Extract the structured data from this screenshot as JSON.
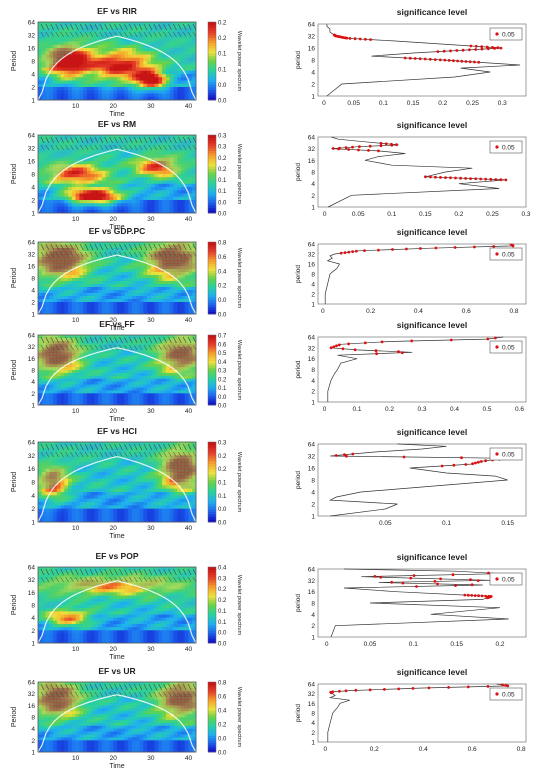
{
  "colors": {
    "ridge": "#dd1111",
    "line": "#333333",
    "panel_border": "#777777",
    "colorbar": [
      "#1010c8",
      "#1c64f0",
      "#1fb0f0",
      "#28d2a0",
      "#66d24a",
      "#f0e13c",
      "#f5a02a",
      "#e8402a",
      "#c81414"
    ]
  },
  "icons": {
    "arrow": "phase-arrow-glyph",
    "dot": "legend-dot-icon"
  },
  "chart_data": [
    {
      "type": "heatmap",
      "title": "EF vs RIR",
      "xlabel": "Time",
      "ylabel": "Period",
      "colorbar_label": "Wavelet power spectrum",
      "x_ticks": [
        "10",
        "20",
        "30",
        "40"
      ],
      "y_ticks": [
        "1",
        "2",
        "4",
        "8",
        "16",
        "32",
        "64"
      ],
      "colorbar_ticks": [
        "0.0",
        "0.0",
        "0.1",
        "0.1",
        "0.2",
        "0.2"
      ],
      "xlim": [
        0,
        42
      ],
      "ylim_log2": [
        0,
        6
      ],
      "hot_regions": [
        {
          "x": 8,
          "period": 8,
          "rx": 6,
          "rpow": 1.2,
          "level": 0.9
        },
        {
          "x": 22,
          "period": 6,
          "rx": 8,
          "rpow": 1.2,
          "level": 0.7
        },
        {
          "x": 30,
          "period": 3,
          "rx": 4,
          "rpow": 0.7,
          "level": 0.8
        }
      ]
    },
    {
      "type": "line",
      "title": "significance level",
      "xlabel": "",
      "ylabel": "period",
      "legend": "0.05",
      "x_ticks": [
        "0",
        "0.05",
        "0.1",
        "0.15",
        "0.2",
        "0.25",
        "0.3"
      ],
      "y_ticks": [
        "1",
        "2",
        "4",
        "8",
        "16",
        "32",
        "64"
      ],
      "xlim": [
        -0.01,
        0.34
      ],
      "ylim": [
        1,
        64
      ],
      "y": [
        1,
        2,
        3,
        4,
        5,
        6,
        8,
        10,
        12,
        16,
        20,
        24,
        28,
        32,
        40,
        48,
        56,
        64
      ],
      "x": [
        0.005,
        0.03,
        0.22,
        0.28,
        0.23,
        0.33,
        0.2,
        0.08,
        0.15,
        0.3,
        0.2,
        0.12,
        0.04,
        0.02,
        0.01,
        0.01,
        0.005,
        0.005
      ],
      "significant_ranges": [
        [
          7,
          9
        ],
        [
          13,
          18
        ],
        [
          26,
          34
        ]
      ]
    },
    {
      "type": "heatmap",
      "title": "EF vs RM",
      "xlabel": "Time",
      "ylabel": "Period",
      "colorbar_label": "Wavelet power spectrum",
      "x_ticks": [
        "10",
        "20",
        "30",
        "40"
      ],
      "y_ticks": [
        "1",
        "2",
        "4",
        "8",
        "16",
        "32",
        "64"
      ],
      "colorbar_ticks": [
        "0.0",
        "0.0",
        "0.1",
        "0.1",
        "0.2",
        "0.2",
        "0.3",
        "0.3"
      ],
      "xlim": [
        0,
        42
      ],
      "ylim_log2": [
        0,
        6
      ],
      "hot_regions": [
        {
          "x": 15,
          "period": 2.5,
          "rx": 7,
          "rpow": 0.6,
          "level": 0.9
        },
        {
          "x": 10,
          "period": 8,
          "rx": 8,
          "rpow": 0.8,
          "level": 0.6
        },
        {
          "x": 32,
          "period": 12,
          "rx": 6,
          "rpow": 0.8,
          "level": 0.6
        }
      ]
    },
    {
      "type": "line",
      "title": "significance level",
      "xlabel": "",
      "ylabel": "period",
      "legend": "0.05",
      "x_ticks": [
        "0",
        "0.05",
        "0.1",
        "0.15",
        "0.2",
        "0.25",
        "0.3"
      ],
      "y_ticks": [
        "1",
        "2",
        "4",
        "8",
        "16",
        "32",
        "64"
      ],
      "xlim": [
        -0.01,
        0.3
      ],
      "ylim": [
        1,
        64
      ],
      "y": [
        1,
        2,
        3,
        4,
        5,
        6,
        8,
        10,
        12,
        16,
        20,
        24,
        28,
        32,
        36,
        40,
        48,
        56,
        64
      ],
      "x": [
        0.005,
        0.04,
        0.26,
        0.2,
        0.27,
        0.15,
        0.18,
        0.22,
        0.1,
        0.06,
        0.08,
        0.12,
        0.08,
        0.01,
        0.05,
        0.11,
        0.06,
        0.02,
        0.01
      ],
      "significant_ranges": [
        [
          5,
          6
        ],
        [
          28,
          44
        ]
      ]
    },
    {
      "type": "heatmap",
      "title": "EF vs GDP.PC",
      "xlabel": "Time",
      "ylabel": "Period",
      "colorbar_label": "Wavelet power spectrum",
      "x_ticks": [
        "10",
        "20",
        "30",
        "40"
      ],
      "y_ticks": [
        "1",
        "2",
        "4",
        "8",
        "16",
        "32",
        "64"
      ],
      "colorbar_ticks": [
        "0.0",
        "0.0",
        "0.2",
        "0.4",
        "0.6",
        "0.8"
      ],
      "xlim": [
        0,
        42
      ],
      "ylim_log2": [
        0,
        6
      ],
      "hot_regions": [
        {
          "x": 6,
          "period": 24,
          "rx": 7,
          "rpow": 1.5,
          "level": 0.8
        },
        {
          "x": 36,
          "period": 24,
          "rx": 7,
          "rpow": 1.5,
          "level": 0.8
        }
      ]
    },
    {
      "type": "line",
      "title": "significance level",
      "xlabel": "",
      "ylabel": "period",
      "legend": "0.05",
      "x_ticks": [
        "0",
        "0.2",
        "0.4",
        "0.6",
        "0.8"
      ],
      "y_ticks": [
        "1",
        "2",
        "4",
        "8",
        "16",
        "32",
        "64"
      ],
      "xlim": [
        -0.02,
        0.85
      ],
      "ylim": [
        1,
        64
      ],
      "y": [
        1,
        2,
        4,
        8,
        12,
        16,
        20,
        24,
        28,
        32,
        40,
        48,
        56,
        64
      ],
      "x": [
        0.01,
        0.01,
        0.02,
        0.03,
        0.06,
        0.07,
        0.02,
        0.04,
        0.03,
        0.05,
        0.15,
        0.45,
        0.8,
        0.78
      ],
      "significant_ranges": [
        [
          34,
          60
        ]
      ]
    },
    {
      "type": "heatmap",
      "title": "EF vs FF",
      "xlabel": "Time",
      "ylabel": "Period",
      "colorbar_label": "Wavelet power spectrum",
      "x_ticks": [
        "10",
        "20",
        "30",
        "40"
      ],
      "y_ticks": [
        "1",
        "2",
        "4",
        "8",
        "16",
        "32",
        "64"
      ],
      "colorbar_ticks": [
        "0.0",
        "0.0",
        "0.1",
        "0.2",
        "0.3",
        "0.4",
        "0.5",
        "0.6",
        "0.7"
      ],
      "xlim": [
        0,
        42
      ],
      "ylim_log2": [
        0,
        6
      ],
      "hot_regions": [
        {
          "x": 5,
          "period": 20,
          "rx": 6,
          "rpow": 1.5,
          "level": 0.75
        },
        {
          "x": 38,
          "period": 20,
          "rx": 6,
          "rpow": 1.5,
          "level": 0.7
        }
      ]
    },
    {
      "type": "line",
      "title": "significance level",
      "xlabel": "",
      "ylabel": "period",
      "legend": "0.05",
      "x_ticks": [
        "0",
        "0.1",
        "0.2",
        "0.3",
        "0.4",
        "0.5",
        "0.6"
      ],
      "y_ticks": [
        "1",
        "2",
        "4",
        "8",
        "16",
        "32",
        "64"
      ],
      "xlim": [
        -0.02,
        0.62
      ],
      "ylim": [
        1,
        64
      ],
      "y": [
        1,
        2,
        4,
        6,
        8,
        12,
        16,
        20,
        24,
        28,
        32,
        40,
        48,
        56,
        64
      ],
      "x": [
        0.01,
        0.01,
        0.02,
        0.03,
        0.04,
        0.05,
        0.1,
        0.04,
        0.27,
        0.1,
        0.02,
        0.05,
        0.2,
        0.5,
        0.55
      ],
      "significant_ranges": [
        [
          22,
          60
        ]
      ]
    },
    {
      "type": "heatmap",
      "title": "EF vs HCI",
      "xlabel": "Time",
      "ylabel": "Period",
      "colorbar_label": "Wavelet power spectrum",
      "x_ticks": [
        "10",
        "20",
        "30",
        "40"
      ],
      "y_ticks": [
        "1",
        "2",
        "4",
        "8",
        "16",
        "32",
        "64"
      ],
      "colorbar_ticks": [
        "0.0",
        "0.0",
        "0.1",
        "0.1",
        "0.2",
        "0.2",
        "0.3"
      ],
      "xlim": [
        0,
        42
      ],
      "ylim_log2": [
        0,
        6
      ],
      "hot_regions": [
        {
          "x": 38,
          "period": 16,
          "rx": 5,
          "rpow": 1.5,
          "level": 0.8
        },
        {
          "x": 4,
          "period": 8,
          "rx": 4,
          "rpow": 1.2,
          "level": 0.6
        }
      ]
    },
    {
      "type": "line",
      "title": "significance level",
      "xlabel": "",
      "ylabel": "period",
      "legend": "0.05",
      "x_ticks": [
        "0.05",
        "0.1",
        "0.15"
      ],
      "y_ticks": [
        "1",
        "2",
        "4",
        "8",
        "16",
        "32",
        "64"
      ],
      "xlim": [
        -0.005,
        0.165
      ],
      "ylim": [
        1,
        64
      ],
      "y": [
        1,
        1.5,
        2,
        2.5,
        3,
        4,
        6,
        8,
        10,
        12,
        16,
        20,
        24,
        28,
        32,
        40,
        48,
        56,
        64
      ],
      "x": [
        0.005,
        0.05,
        0.06,
        0.005,
        0.01,
        0.03,
        0.1,
        0.15,
        0.14,
        0.1,
        0.07,
        0.12,
        0.13,
        0.15,
        0.005,
        0.04,
        0.08,
        0.1,
        0.06
      ],
      "significant_ranges": [
        [
          18,
          36
        ]
      ]
    },
    {
      "type": "heatmap",
      "title": "EF vs POP",
      "xlabel": "Time",
      "ylabel": "Period",
      "colorbar_label": "Wavelet power spectrum",
      "x_ticks": [
        "10",
        "20",
        "30",
        "40"
      ],
      "y_ticks": [
        "1",
        "2",
        "4",
        "8",
        "16",
        "32",
        "64"
      ],
      "colorbar_ticks": [
        "0.0",
        "0.0",
        "0.1",
        "0.1",
        "0.2",
        "0.2",
        "0.3",
        "0.4"
      ],
      "xlim": [
        0,
        42
      ],
      "ylim_log2": [
        0,
        6
      ],
      "hot_regions": [
        {
          "x": 20,
          "period": 24,
          "rx": 20,
          "rpow": 0.8,
          "level": 0.45
        },
        {
          "x": 8,
          "period": 4,
          "rx": 6,
          "rpow": 0.6,
          "level": 0.55
        }
      ]
    },
    {
      "type": "line",
      "title": "significance level",
      "xlabel": "",
      "ylabel": "period",
      "legend": "0.05",
      "x_ticks": [
        "0",
        "0.05",
        "0.1",
        "0.15",
        "0.2"
      ],
      "y_ticks": [
        "1",
        "2",
        "4",
        "8",
        "16",
        "32",
        "64"
      ],
      "xlim": [
        -0.01,
        0.23
      ],
      "ylim": [
        1,
        64
      ],
      "y": [
        1,
        2,
        3,
        4,
        6,
        8,
        10,
        12,
        16,
        20,
        24,
        28,
        32,
        40,
        48,
        56,
        64
      ],
      "x": [
        0.005,
        0.01,
        0.21,
        0.12,
        0.2,
        0.05,
        0.18,
        0.19,
        0.08,
        0.02,
        0.18,
        0.06,
        0.19,
        0.04,
        0.2,
        0.15,
        0.02
      ],
      "significant_ranges": [
        [
          11,
          13
        ],
        [
          22,
          50
        ]
      ]
    },
    {
      "type": "heatmap",
      "title": "EF vs UR",
      "xlabel": "Time",
      "ylabel": "Period",
      "colorbar_label": "Wavelet power spectrum",
      "x_ticks": [
        "10",
        "20",
        "30",
        "40"
      ],
      "y_ticks": [
        "1",
        "2",
        "4",
        "8",
        "16",
        "32",
        "64"
      ],
      "colorbar_ticks": [
        "0.0",
        "0.0",
        "0.2",
        "0.4",
        "0.6",
        "0.8"
      ],
      "xlim": [
        0,
        42
      ],
      "ylim_log2": [
        0,
        6
      ],
      "hot_regions": [
        {
          "x": 5,
          "period": 24,
          "rx": 6,
          "rpow": 1.5,
          "level": 0.75
        },
        {
          "x": 38,
          "period": 24,
          "rx": 6,
          "rpow": 1.5,
          "level": 0.75
        }
      ]
    },
    {
      "type": "line",
      "title": "significance level",
      "xlabel": "",
      "ylabel": "period",
      "legend": "0.05",
      "x_ticks": [
        "0",
        "0.2",
        "0.4",
        "0.6",
        "0.8"
      ],
      "y_ticks": [
        "1",
        "2",
        "4",
        "8",
        "16",
        "32",
        "64"
      ],
      "xlim": [
        -0.03,
        0.82
      ],
      "ylim": [
        1,
        64
      ],
      "y": [
        1,
        2,
        4,
        8,
        12,
        16,
        20,
        24,
        28,
        32,
        36,
        40,
        48,
        56,
        64
      ],
      "x": [
        0.01,
        0.01,
        0.02,
        0.03,
        0.05,
        0.06,
        0.1,
        0.02,
        0.04,
        0.03,
        0.02,
        0.1,
        0.4,
        0.75,
        0.7
      ],
      "significant_ranges": [
        [
          34,
          60
        ]
      ]
    }
  ]
}
